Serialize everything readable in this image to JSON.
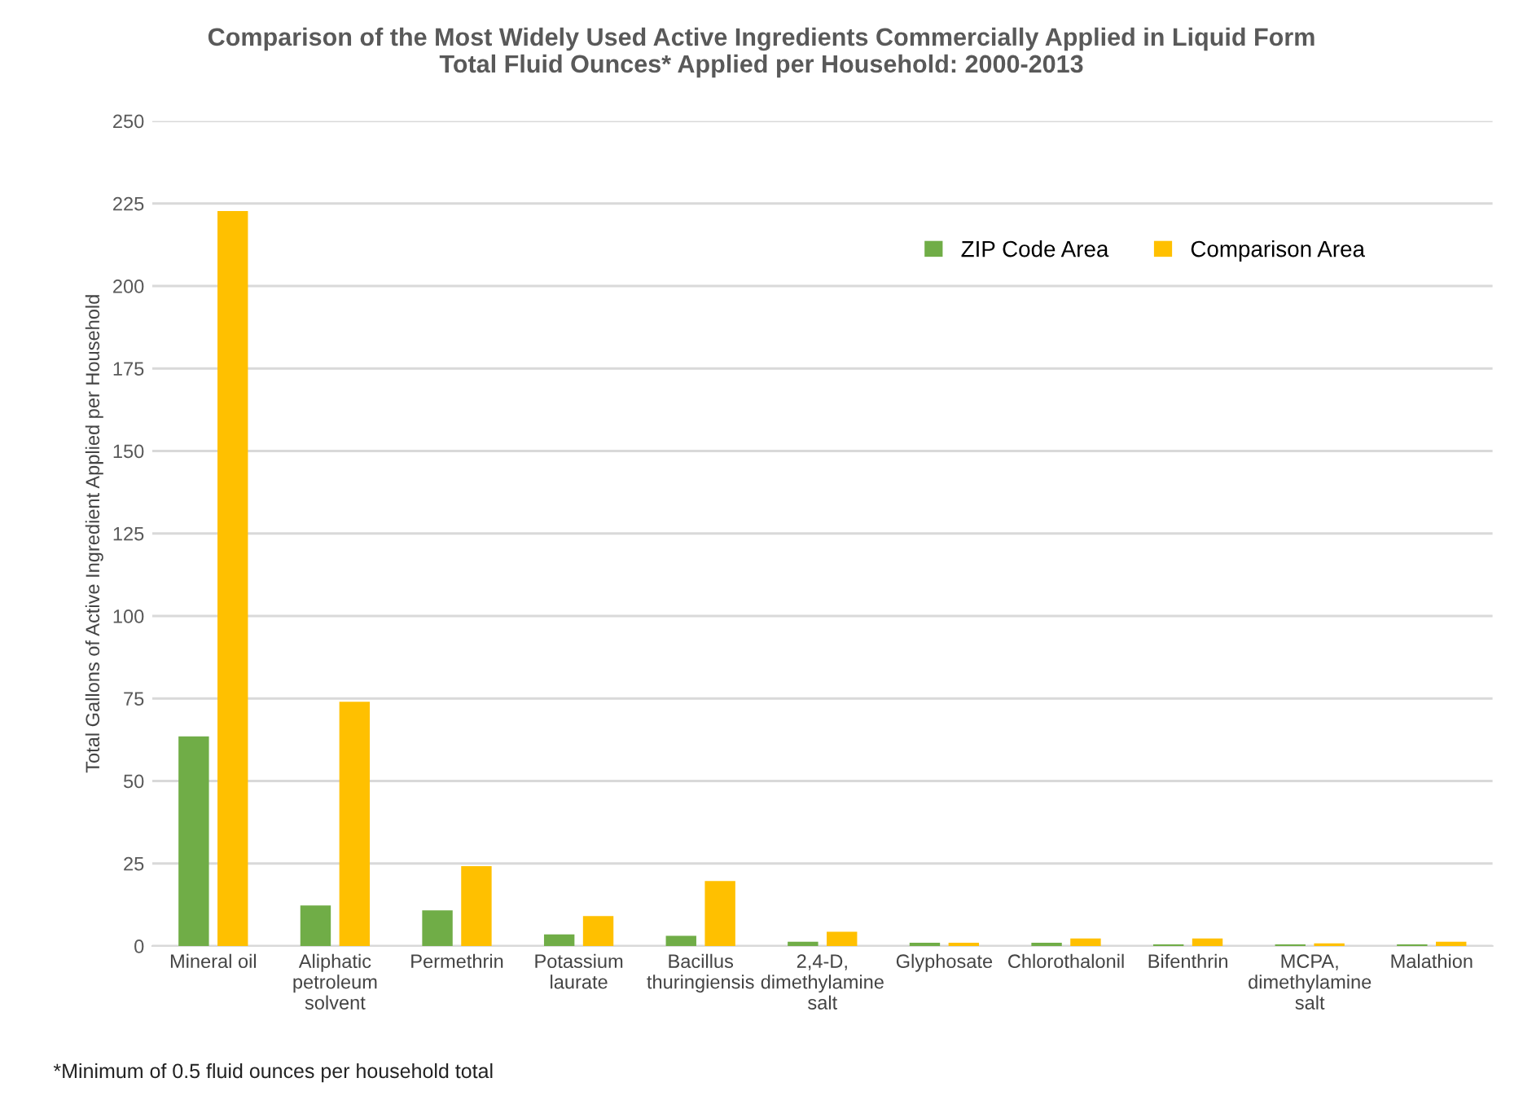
{
  "chart_data": {
    "type": "bar",
    "title": "Comparison of the Most Widely Used Active Ingredients Commercially Applied in Liquid Form\nTotal Fluid Ounces* Applied per Household: 2000-2013",
    "ylabel": "Total Gallons of Active Ingredient Applied per Household",
    "categories": [
      "Mineral oil",
      "Aliphatic\npetroleum\nsolvent",
      "Permethrin",
      "Potassium\nlaurate",
      "Bacillus\nthuringiensis",
      "2,4-D,\ndimethylamine\nsalt",
      "Glyphosate",
      "Chlorothalonil",
      "Bifenthrin",
      "MCPA,\ndimethylamine\nsalt",
      "Malathion"
    ],
    "series": [
      {
        "name": "ZIP Code Area",
        "color": "#70ad47",
        "values": [
          63.5,
          12.3,
          10.8,
          3.5,
          3.1,
          1.3,
          1.0,
          1.0,
          0.5,
          0.5,
          0.5
        ]
      },
      {
        "name": "Comparison Area",
        "color": "#ffc000",
        "values": [
          222.7,
          74,
          24.2,
          9.1,
          19.7,
          4.3,
          1.0,
          2.3,
          2.3,
          0.8,
          1.3
        ]
      }
    ],
    "ylim": [
      0,
      250
    ],
    "yticks": [
      0,
      25,
      50,
      75,
      100,
      125,
      150,
      175,
      200,
      225,
      250
    ],
    "grid": "y",
    "legend": "top right",
    "annotations": [
      "*Minimum of 0.5 fluid ounces per household total"
    ]
  }
}
